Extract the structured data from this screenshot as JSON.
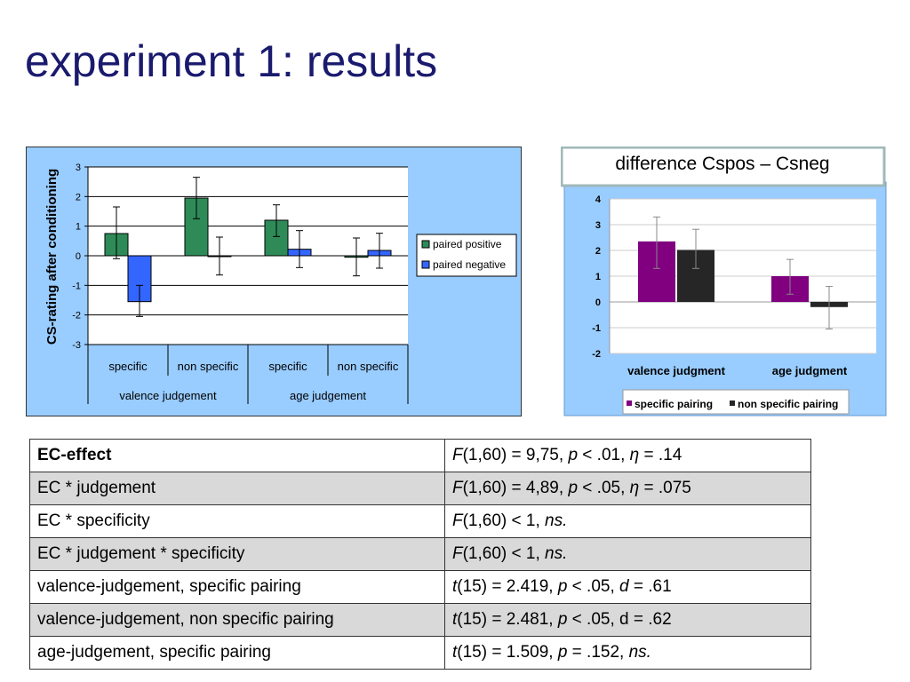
{
  "slide": {
    "title": "experiment 1: results"
  },
  "chart_data": [
    {
      "type": "bar",
      "ylabel": "CS-rating after conditioning",
      "ylim": [
        -3,
        3
      ],
      "yticks": [
        3,
        2,
        1,
        0,
        -1,
        -2,
        -3
      ],
      "grid": true,
      "legend_position": "right",
      "categories": [
        "specific",
        "non specific",
        "specific",
        "non specific"
      ],
      "group_labels": [
        "valence judgement",
        "age judgement"
      ],
      "series": [
        {
          "name": "paired positive",
          "color": "#2e8b57",
          "values": [
            0.75,
            1.95,
            1.2,
            -0.05
          ],
          "error_bars": [
            [
              -0.1,
              1.65
            ],
            [
              1.25,
              2.65
            ],
            [
              0.65,
              1.72
            ],
            [
              -0.68,
              0.6
            ]
          ]
        },
        {
          "name": "paired negative",
          "color": "#3366ff",
          "values": [
            -1.55,
            0.0,
            0.22,
            0.18
          ],
          "error_bars": [
            [
              -2.05,
              -1.0
            ],
            [
              -0.65,
              0.63
            ],
            [
              -0.4,
              0.85
            ],
            [
              -0.42,
              0.76
            ]
          ]
        }
      ],
      "background_color": "#99ccff"
    },
    {
      "type": "bar",
      "title": "difference Cspos – Csneg",
      "ylim": [
        -2,
        4
      ],
      "yticks": [
        4,
        3,
        2,
        1,
        0,
        -1,
        -2
      ],
      "grid": true,
      "legend_position": "bottom",
      "categories": [
        "valence judgment",
        "age judgment"
      ],
      "series": [
        {
          "name": "specific pairing",
          "color": "#800080",
          "values": [
            2.35,
            1.0
          ],
          "error_bars": [
            [
              1.3,
              3.3
            ],
            [
              0.3,
              1.65
            ]
          ]
        },
        {
          "name": "non specific pairing",
          "color": "#262626",
          "values": [
            2.02,
            -0.2
          ],
          "error_bars": [
            [
              1.3,
              2.82
            ],
            [
              -1.05,
              0.6
            ]
          ]
        }
      ],
      "background_color": "#99ccff"
    }
  ],
  "table": {
    "rows": [
      {
        "effect": "EC-effect",
        "bold": true,
        "shaded": false,
        "stat": [
          [
            "i",
            "F"
          ],
          [
            "n",
            "(1,60) = 9,75, "
          ],
          [
            "i",
            "p"
          ],
          [
            "n",
            " < .01, "
          ],
          [
            "i",
            "η"
          ],
          [
            "n",
            " = .14"
          ]
        ]
      },
      {
        "effect": "EC * judgement",
        "bold": false,
        "shaded": true,
        "stat": [
          [
            "i",
            "F"
          ],
          [
            "n",
            "(1,60) = 4,89, "
          ],
          [
            "i",
            "p"
          ],
          [
            "n",
            " < .05, "
          ],
          [
            "i",
            "η"
          ],
          [
            "n",
            " = .075"
          ]
        ]
      },
      {
        "effect": "EC * specificity",
        "bold": false,
        "shaded": false,
        "stat": [
          [
            "i",
            "F"
          ],
          [
            "n",
            "(1,60) < 1, "
          ],
          [
            "i",
            "ns."
          ]
        ]
      },
      {
        "effect": "EC * judgement * specificity",
        "bold": false,
        "shaded": true,
        "stat": [
          [
            "i",
            "F"
          ],
          [
            "n",
            "(1,60) < 1, "
          ],
          [
            "i",
            "ns."
          ]
        ]
      },
      {
        "effect": "valence-judgement, specific pairing",
        "bold": false,
        "shaded": false,
        "stat": [
          [
            "i",
            "t"
          ],
          [
            "n",
            "(15) = 2.419, "
          ],
          [
            "i",
            "p"
          ],
          [
            "n",
            " < .05, "
          ],
          [
            "i",
            "d"
          ],
          [
            "n",
            " = .61"
          ]
        ]
      },
      {
        "effect": "valence-judgement, non specific pairing",
        "bold": false,
        "shaded": true,
        "stat": [
          [
            "i",
            "t"
          ],
          [
            "n",
            "(15) = 2.481, "
          ],
          [
            "i",
            "p"
          ],
          [
            "n",
            " < .05, d = .62"
          ]
        ]
      },
      {
        "effect": "age-judgement, specific pairing",
        "bold": false,
        "shaded": false,
        "stat": [
          [
            "i",
            "t"
          ],
          [
            "n",
            "(15) = 1.509, "
          ],
          [
            "i",
            "p"
          ],
          [
            "n",
            " = .152, "
          ],
          [
            "i",
            "ns."
          ]
        ]
      }
    ]
  }
}
